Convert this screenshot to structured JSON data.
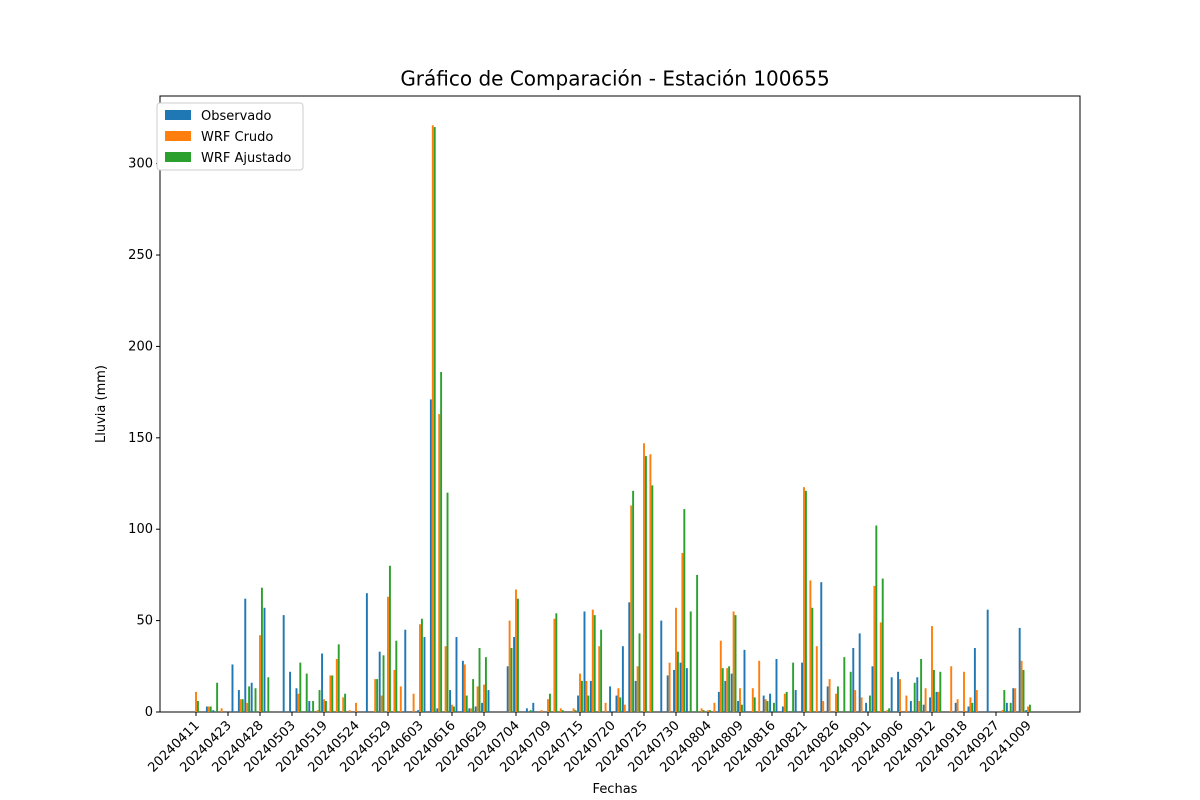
{
  "chart_data": {
    "type": "bar",
    "title": "Gráfico de Comparación - Estación 100655",
    "x_label": "Fechas",
    "y_label": "Lluvia (mm)",
    "legend": "upper left",
    "grid": false,
    "ylim": [
      0,
      337
    ],
    "yticks": [
      0,
      50,
      100,
      150,
      200,
      250,
      300
    ],
    "categories": [
      "20240411",
      null,
      null,
      null,
      null,
      "20240423",
      null,
      null,
      null,
      null,
      "20240428",
      null,
      null,
      null,
      null,
      "20240503",
      null,
      null,
      null,
      null,
      "20240519",
      null,
      null,
      null,
      null,
      "20240524",
      null,
      null,
      null,
      null,
      "20240529",
      null,
      null,
      null,
      null,
      "20240603",
      null,
      null,
      null,
      null,
      "20240616",
      null,
      null,
      null,
      null,
      "20240629",
      null,
      null,
      null,
      null,
      "20240704",
      null,
      null,
      null,
      null,
      "20240709",
      null,
      null,
      null,
      null,
      "20240715",
      null,
      null,
      null,
      null,
      "20240720",
      null,
      null,
      null,
      null,
      "20240725",
      null,
      null,
      null,
      null,
      "20240730",
      null,
      null,
      null,
      null,
      "20240804",
      null,
      null,
      null,
      null,
      "20240809",
      null,
      null,
      null,
      null,
      "20240816",
      null,
      null,
      null,
      null,
      "20240821",
      null,
      null,
      null,
      null,
      "20240826",
      null,
      null,
      null,
      null,
      "20240901",
      null,
      null,
      null,
      null,
      "20240906",
      null,
      null,
      null,
      null,
      "20240912",
      null,
      null,
      null,
      null,
      "20240918",
      null,
      null,
      null,
      null,
      "20240927",
      null,
      null,
      null,
      null,
      "20241009"
    ],
    "series": [
      {
        "name": "Observado",
        "color": "#1f77b4",
        "values": [
          0,
          0,
          3,
          1,
          0,
          0,
          26,
          12,
          62,
          16,
          0,
          57,
          0,
          0,
          53,
          22,
          13,
          0,
          6,
          0,
          32,
          0,
          0,
          0,
          0,
          0,
          0,
          65,
          0,
          33,
          0,
          0,
          0,
          45,
          0,
          1,
          41,
          171,
          2,
          0,
          12,
          41,
          28,
          2,
          3,
          5,
          12,
          0,
          0,
          25,
          41,
          0,
          2,
          5,
          0,
          0,
          0,
          0,
          0,
          0,
          9,
          55,
          17,
          0,
          0,
          14,
          9,
          36,
          60,
          17,
          0,
          0,
          0,
          50,
          20,
          23,
          27,
          24,
          0,
          0,
          0,
          0,
          11,
          17,
          21,
          6,
          34,
          0,
          0,
          9,
          10,
          29,
          3,
          0,
          12,
          27,
          0,
          0,
          71,
          14,
          0,
          0,
          0,
          35,
          43,
          5,
          25,
          0,
          0,
          19,
          22,
          0,
          6,
          19,
          4,
          8,
          11,
          0,
          0,
          5,
          0,
          3,
          35,
          0,
          56,
          0,
          0,
          5,
          13,
          46,
          1
        ]
      },
      {
        "name": "WRF Crudo",
        "color": "#ff7f0e",
        "values": [
          11,
          0,
          3,
          0,
          2,
          0,
          0,
          7,
          5,
          0,
          42,
          0,
          0,
          0,
          0,
          0,
          10,
          0,
          0,
          1,
          7,
          20,
          29,
          8,
          1,
          5,
          0,
          0,
          18,
          9,
          63,
          23,
          14,
          0,
          10,
          48,
          0,
          321,
          163,
          36,
          4,
          0,
          26,
          2,
          14,
          15,
          0,
          0,
          0,
          50,
          67,
          0,
          0,
          0,
          1,
          7,
          51,
          2,
          0,
          2,
          21,
          17,
          56,
          36,
          5,
          0,
          13,
          4,
          113,
          25,
          147,
          141,
          0,
          0,
          27,
          57,
          87,
          0,
          0,
          2,
          1,
          5,
          39,
          24,
          55,
          13,
          0,
          13,
          28,
          7,
          0,
          0,
          10,
          0,
          0,
          123,
          72,
          36,
          6,
          18,
          10,
          0,
          0,
          12,
          8,
          0,
          69,
          49,
          1,
          0,
          18,
          9,
          0,
          6,
          13,
          47,
          11,
          0,
          25,
          7,
          22,
          8,
          12,
          0,
          0,
          0,
          1,
          0,
          13,
          28,
          3
        ]
      },
      {
        "name": "WRF Ajustado",
        "color": "#2ca02c",
        "values": [
          6,
          0,
          3,
          16,
          0,
          0,
          0,
          7,
          14,
          13,
          68,
          19,
          0,
          0,
          0,
          0,
          27,
          21,
          6,
          12,
          6,
          20,
          37,
          10,
          0,
          0,
          0,
          0,
          18,
          31,
          80,
          39,
          0,
          0,
          0,
          51,
          0,
          320,
          186,
          120,
          3,
          0,
          9,
          18,
          35,
          30,
          0,
          0,
          0,
          35,
          62,
          0,
          1,
          0,
          0,
          10,
          54,
          1,
          0,
          1,
          17,
          9,
          53,
          45,
          0,
          0,
          8,
          0,
          121,
          43,
          140,
          124,
          0,
          0,
          0,
          33,
          111,
          55,
          75,
          1,
          1,
          0,
          24,
          25,
          53,
          4,
          0,
          8,
          0,
          6,
          5,
          0,
          11,
          27,
          0,
          121,
          57,
          0,
          0,
          0,
          14,
          30,
          22,
          0,
          0,
          9,
          102,
          73,
          2,
          0,
          0,
          0,
          16,
          29,
          0,
          23,
          22,
          0,
          0,
          0,
          0,
          5,
          0,
          0,
          0,
          0,
          12,
          5,
          0,
          23,
          4
        ]
      }
    ]
  }
}
